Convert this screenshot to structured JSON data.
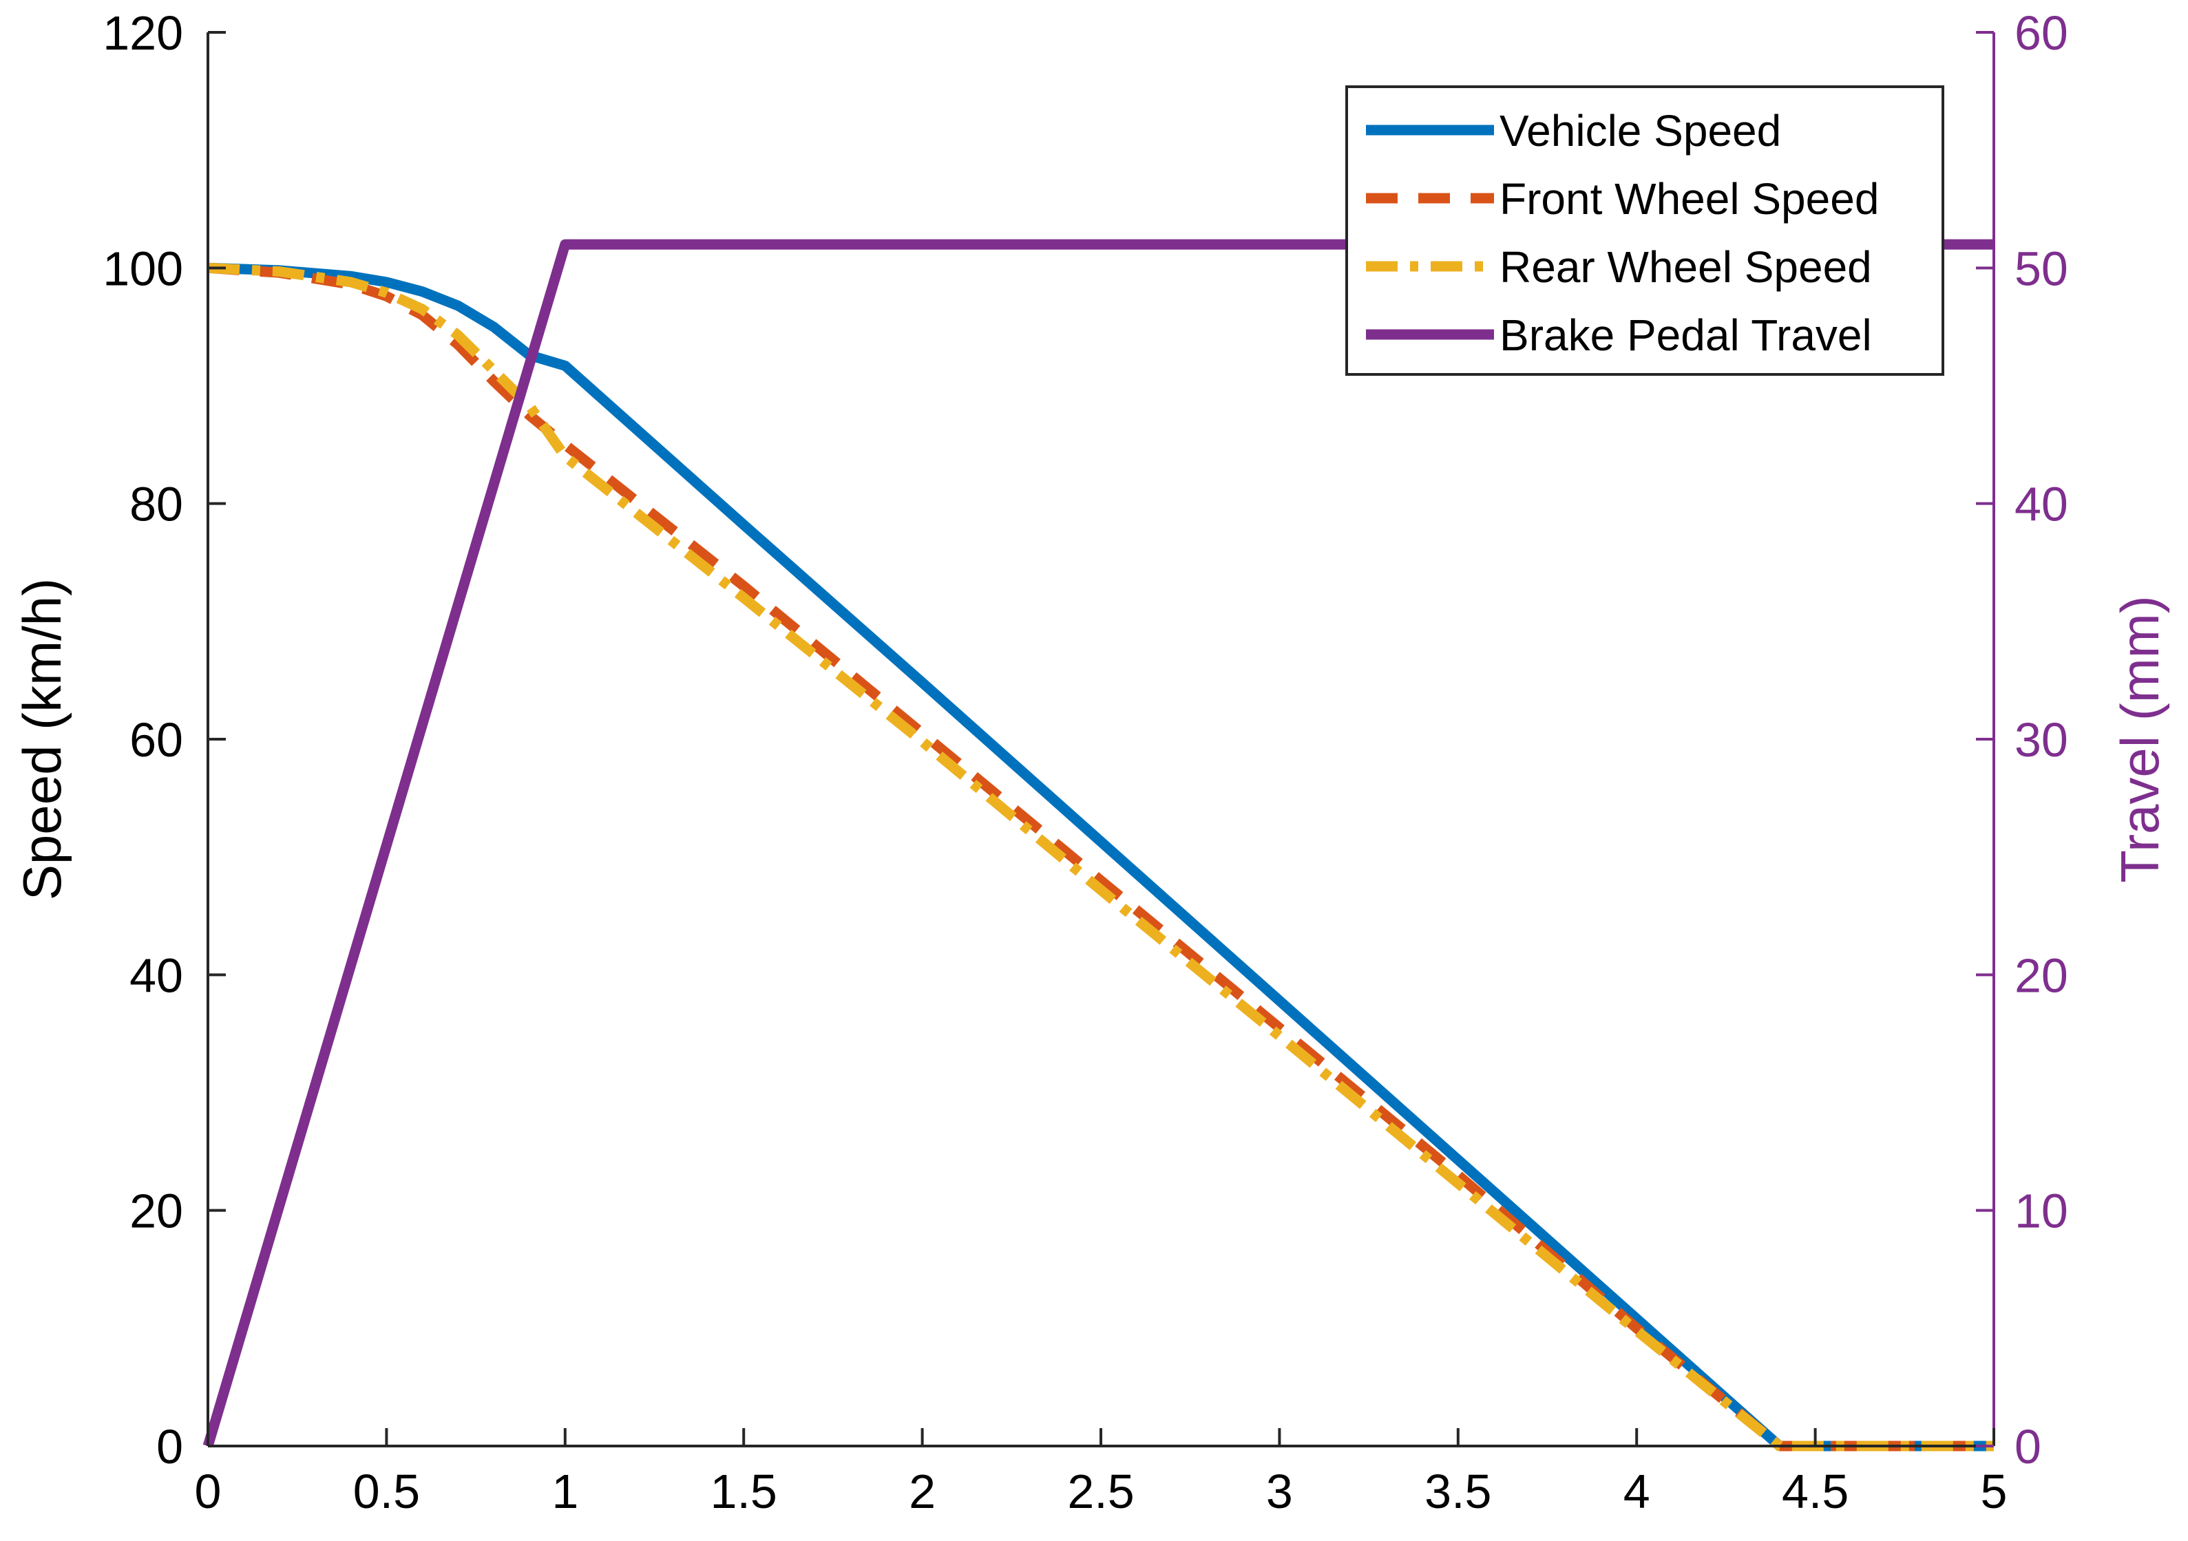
{
  "chart_data": {
    "type": "line",
    "title": "",
    "xlabel": "",
    "ylabel": "Speed (km/h)",
    "y2label": "Travel (mm)",
    "xlim": [
      0,
      5
    ],
    "ylim": [
      0,
      120
    ],
    "y2lim": [
      0,
      60
    ],
    "xticks": [
      0,
      0.5,
      1,
      1.5,
      2,
      2.5,
      3,
      3.5,
      4,
      4.5,
      5
    ],
    "xtick_labels": [
      "0",
      "0.5",
      "1",
      "1.5",
      "2",
      "2.5",
      "3",
      "3.5",
      "4",
      "4.5",
      "5"
    ],
    "yticks": [
      0,
      20,
      40,
      60,
      80,
      100,
      120
    ],
    "ytick_labels": [
      "0",
      "20",
      "40",
      "60",
      "80",
      "100",
      "120"
    ],
    "y2ticks": [
      0,
      10,
      20,
      30,
      40,
      50,
      60
    ],
    "y2tick_labels": [
      "0",
      "10",
      "20",
      "30",
      "40",
      "50",
      "60"
    ],
    "grid": false,
    "legend_position": "top-right",
    "series": [
      {
        "name": "Vehicle Speed",
        "axis": "left",
        "color": "#0072BD",
        "style": "solid",
        "x": [
          0,
          0.2,
          0.4,
          0.5,
          0.6,
          0.7,
          0.8,
          0.9,
          1.0,
          1.5,
          2.0,
          2.5,
          3.0,
          3.5,
          4.0,
          4.4,
          4.5,
          5.0
        ],
        "values": [
          100,
          99.8,
          99.3,
          98.8,
          98.0,
          96.8,
          95.0,
          92.6,
          91.7,
          78.2,
          64.8,
          51.3,
          37.8,
          24.3,
          10.8,
          0,
          0,
          0
        ]
      },
      {
        "name": "Front Wheel Speed",
        "axis": "left",
        "color": "#D95319",
        "style": "dashed",
        "x": [
          0,
          0.2,
          0.4,
          0.5,
          0.6,
          0.7,
          0.8,
          0.9,
          1.0,
          1.5,
          2.0,
          2.5,
          3.0,
          3.5,
          4.0,
          4.4,
          4.5,
          5.0
        ],
        "values": [
          100,
          99.6,
          98.6,
          97.6,
          96.0,
          93.5,
          90.4,
          87.5,
          85.0,
          73.0,
          60.5,
          48.0,
          35.5,
          23.0,
          10.0,
          0,
          0,
          0
        ]
      },
      {
        "name": "Rear Wheel Speed",
        "axis": "left",
        "color": "#EDB120",
        "style": "dashdot",
        "x": [
          0,
          0.2,
          0.4,
          0.5,
          0.6,
          0.7,
          0.8,
          0.9,
          1.0,
          1.5,
          2.0,
          2.5,
          3.0,
          3.5,
          4.0,
          4.4,
          4.5,
          5.0
        ],
        "values": [
          100,
          99.7,
          98.8,
          97.9,
          96.5,
          94.3,
          91.3,
          88.3,
          84.0,
          72.0,
          59.8,
          47.2,
          34.8,
          22.3,
          9.8,
          0,
          0,
          0
        ]
      },
      {
        "name": "Brake Pedal Travel",
        "axis": "right",
        "color": "#7E2F8E",
        "style": "solid",
        "x": [
          0,
          1.0,
          5.0
        ],
        "values": [
          0,
          51,
          51
        ]
      }
    ]
  }
}
